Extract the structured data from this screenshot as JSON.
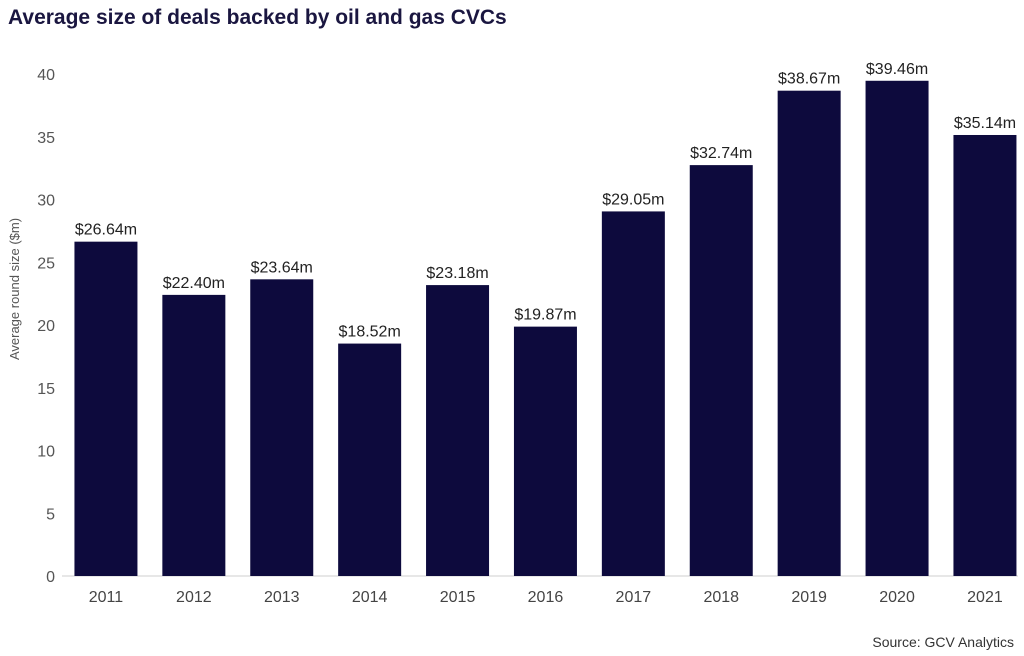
{
  "chart_data": {
    "type": "bar",
    "title": "Average size of deals backed by oil and gas CVCs",
    "xlabel": "",
    "ylabel": "Average round size ($m)",
    "ylim": [
      0,
      40
    ],
    "yticks": [
      0,
      5,
      10,
      15,
      20,
      25,
      30,
      35,
      40
    ],
    "categories": [
      "2011",
      "2012",
      "2013",
      "2014",
      "2015",
      "2016",
      "2017",
      "2018",
      "2019",
      "2020",
      "2021"
    ],
    "values": [
      26.64,
      22.4,
      23.64,
      18.52,
      23.18,
      19.87,
      29.05,
      32.74,
      38.67,
      39.46,
      35.14
    ],
    "data_labels": [
      "$26.64m",
      "$22.40m",
      "$23.64m",
      "$18.52m",
      "$23.18m",
      "$19.87m",
      "$29.05m",
      "$32.74m",
      "$38.67m",
      "$39.46m",
      "$35.14m"
    ],
    "bar_color": "#0d0a3d",
    "grid": false
  },
  "source": "Source: GCV Analytics"
}
